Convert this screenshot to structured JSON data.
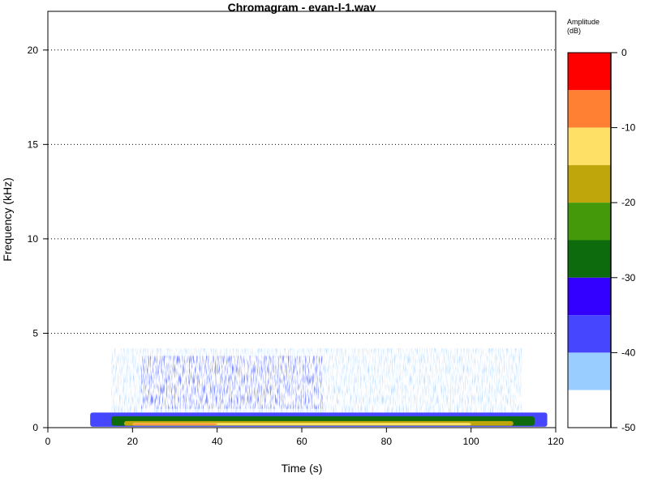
{
  "chart_data": {
    "type": "heatmap",
    "title": "Chromagram - evan-l-1.wav",
    "xlabel": "Time (s)",
    "ylabel": "Frequency (kHz)",
    "xlim": [
      0,
      120
    ],
    "ylim": [
      0,
      22.05
    ],
    "x_ticks": [
      0,
      20,
      40,
      60,
      80,
      100,
      120
    ],
    "y_ticks": [
      0,
      5,
      10,
      15,
      20
    ],
    "y_gridlines": [
      5,
      10,
      15,
      20
    ],
    "grid": "horizontal dotted",
    "colorbar": {
      "title_line1": "Amplitude",
      "title_line2": "(dB)",
      "range": [
        -50,
        0
      ],
      "ticks": [
        0,
        -10,
        -20,
        -30,
        -40,
        -50
      ],
      "levels": [
        {
          "from": -5,
          "to": 0,
          "color": "#ff0000"
        },
        {
          "from": -10,
          "to": -5,
          "color": "#ff8033"
        },
        {
          "from": -15,
          "to": -10,
          "color": "#ffe066"
        },
        {
          "from": -20,
          "to": -15,
          "color": "#bfa60a"
        },
        {
          "from": -25,
          "to": -20,
          "color": "#43990a"
        },
        {
          "from": -30,
          "to": -25,
          "color": "#0d6b0d"
        },
        {
          "from": -35,
          "to": -30,
          "color": "#3300ff"
        },
        {
          "from": -40,
          "to": -35,
          "color": "#4646ff"
        },
        {
          "from": -45,
          "to": -40,
          "color": "#99ccff"
        },
        {
          "from": -50,
          "to": -45,
          "color": "#ffffff"
        }
      ]
    },
    "regions": [
      {
        "level_db": -42,
        "x0": 15,
        "x1": 112,
        "y0": 0.8,
        "y1": 4.2
      },
      {
        "level_db": -38,
        "x0": 22,
        "x1": 65,
        "y0": 1.0,
        "y1": 3.8
      },
      {
        "level_db": -37,
        "x0": 10,
        "x1": 118,
        "y0": 0.05,
        "y1": 0.8
      },
      {
        "level_db": -27,
        "x0": 15,
        "x1": 115,
        "y0": 0.1,
        "y1": 0.6
      },
      {
        "level_db": -18,
        "x0": 18,
        "x1": 110,
        "y0": 0.1,
        "y1": 0.35
      },
      {
        "level_db": -12,
        "x0": 20,
        "x1": 100,
        "y0": 0.12,
        "y1": 0.25
      },
      {
        "level_db": -7,
        "x0": 20,
        "x1": 40,
        "y0": 0.15,
        "y1": 0.22
      }
    ]
  }
}
